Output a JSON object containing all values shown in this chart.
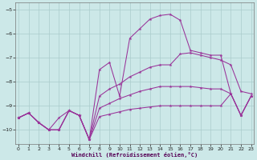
{
  "background_color": "#cce8e8",
  "grid_color": "#aacccc",
  "line_color": "#993399",
  "xlabel": "Windchill (Refroidissement éolien,°C)",
  "xlim": [
    -0.3,
    23.3
  ],
  "ylim": [
    -10.6,
    -4.7
  ],
  "yticks": [
    -10,
    -9,
    -8,
    -7,
    -6,
    -5
  ],
  "xticks": [
    0,
    1,
    2,
    3,
    4,
    5,
    6,
    7,
    8,
    9,
    10,
    11,
    12,
    13,
    14,
    15,
    16,
    17,
    18,
    19,
    20,
    21,
    22,
    23
  ],
  "curve1_y": [
    -9.5,
    -9.3,
    -9.7,
    -10.0,
    -9.5,
    -9.2,
    -9.4,
    -10.4,
    -7.5,
    -7.2,
    -8.6,
    -6.2,
    -5.8,
    -5.4,
    -5.25,
    -5.2,
    -5.45,
    -6.7,
    -6.8,
    -6.9,
    -6.9,
    -8.5,
    -9.4,
    -8.6
  ],
  "curve2_y": [
    -9.5,
    -9.3,
    -9.7,
    -10.0,
    -10.0,
    -9.2,
    -9.4,
    -10.4,
    -8.6,
    -8.3,
    -8.1,
    -7.8,
    -7.6,
    -7.4,
    -7.3,
    -7.3,
    -6.85,
    -6.8,
    -6.9,
    -7.0,
    -7.1,
    -7.3,
    -8.4,
    -8.5
  ],
  "curve3_y": [
    -9.5,
    -9.3,
    -9.7,
    -10.0,
    -10.0,
    -9.2,
    -9.4,
    -10.4,
    -9.1,
    -8.9,
    -8.7,
    -8.55,
    -8.4,
    -8.3,
    -8.2,
    -8.2,
    -8.2,
    -8.2,
    -8.25,
    -8.3,
    -8.3,
    -8.5,
    -9.4,
    -8.6
  ],
  "curve4_y": [
    -9.5,
    -9.3,
    -9.7,
    -10.0,
    -10.0,
    -9.2,
    -9.4,
    -10.4,
    -9.45,
    -9.35,
    -9.25,
    -9.15,
    -9.1,
    -9.05,
    -9.0,
    -9.0,
    -9.0,
    -9.0,
    -9.0,
    -9.0,
    -9.0,
    -8.5,
    -9.4,
    -8.6
  ]
}
